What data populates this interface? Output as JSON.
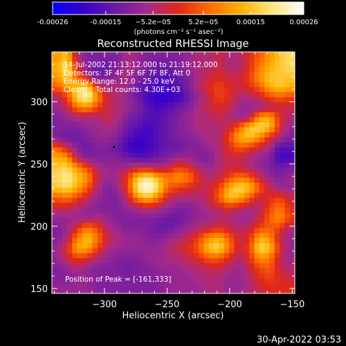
{
  "colorbar": {
    "tick_labels": [
      "-0.00026",
      "-0.00015",
      "−5.2e−05",
      "5.2e−05",
      "0.00015",
      "0.00026"
    ],
    "tick_values": [
      -0.00026,
      -0.00015,
      -5.2e-05,
      5.2e-05,
      0.00015,
      0.00026
    ],
    "range": [
      -0.00026,
      0.00026
    ],
    "units_label": "(photons cm⁻² s⁻¹ asec⁻²)"
  },
  "title": "Reconstructed RHESSI Image",
  "info_lines": [
    "14-Jul-2002 21:13:12.000 to 21:19:12.000",
    "Detectors: 3F 4F 5F 6F 7F 8F, Att 0",
    "Energy Range: 12.0 - 25.0 keV",
    "Clean     Total counts: 4.30E+03"
  ],
  "peak_label": "Position of Peak = [-161,333]",
  "footer_date": "30-Apr-2022 03:53",
  "chart_data": {
    "type": "heatmap",
    "title": "Reconstructed RHESSI Image",
    "xlabel": "Heliocentric X (arcsec)",
    "ylabel": "Heliocentric Y (arcsec)",
    "xlim": [
      -342,
      -148
    ],
    "ylim": [
      146,
      340
    ],
    "x_ticks": [
      -300,
      -250,
      -200,
      -150
    ],
    "y_ticks": [
      150,
      200,
      250,
      300
    ],
    "x_tick_labels": [
      "−300",
      "−250",
      "−200",
      "−150"
    ],
    "y_tick_labels": [
      "150",
      "200",
      "250",
      "300"
    ],
    "value_range": [
      -0.00026,
      0.00026
    ],
    "colormap": [
      "#0000ff",
      "#3a00c8",
      "#6a1aa6",
      "#a32a8a",
      "#e0281a",
      "#ff6a00",
      "#ffb000",
      "#ffe680",
      "#ffffff"
    ],
    "grid": {
      "nx": 24,
      "ny": 24,
      "z": [
        [
          0.7,
          0.8,
          0.4,
          0.3,
          0.3,
          0.3,
          0.3,
          0.4,
          0.35,
          0.3,
          0.3,
          0.3,
          0.3,
          0.35,
          0.4,
          0.4,
          0.45,
          0.4,
          0.4,
          0.5,
          0.6,
          0.7,
          0.8,
          0.85
        ],
        [
          0.75,
          0.9,
          0.5,
          0.3,
          0.25,
          0.25,
          0.3,
          0.4,
          0.35,
          0.3,
          0.25,
          0.25,
          0.3,
          0.35,
          0.4,
          0.4,
          0.45,
          0.4,
          0.4,
          0.5,
          0.65,
          0.75,
          0.8,
          0.85
        ],
        [
          0.7,
          0.85,
          0.6,
          0.4,
          0.25,
          0.3,
          0.35,
          0.4,
          0.3,
          0.25,
          0.2,
          0.2,
          0.25,
          0.3,
          0.4,
          0.45,
          0.5,
          0.45,
          0.45,
          0.55,
          0.7,
          0.8,
          0.8,
          0.8
        ],
        [
          0.6,
          0.7,
          0.8,
          0.9,
          0.5,
          0.4,
          0.4,
          0.35,
          0.25,
          0.2,
          0.15,
          0.15,
          0.2,
          0.3,
          0.4,
          0.5,
          0.55,
          0.5,
          0.45,
          0.5,
          0.6,
          0.75,
          0.8,
          0.75
        ],
        [
          0.4,
          0.55,
          0.85,
          0.95,
          0.7,
          0.45,
          0.4,
          0.35,
          0.25,
          0.15,
          0.1,
          0.1,
          0.15,
          0.25,
          0.35,
          0.45,
          0.55,
          0.5,
          0.4,
          0.4,
          0.45,
          0.55,
          0.6,
          0.55
        ],
        [
          0.35,
          0.45,
          0.65,
          0.7,
          0.55,
          0.45,
          0.4,
          0.35,
          0.3,
          0.2,
          0.15,
          0.2,
          0.25,
          0.3,
          0.4,
          0.45,
          0.5,
          0.45,
          0.35,
          0.35,
          0.35,
          0.4,
          0.45,
          0.45
        ],
        [
          0.3,
          0.35,
          0.4,
          0.4,
          0.4,
          0.45,
          0.4,
          0.3,
          0.25,
          0.2,
          0.2,
          0.25,
          0.3,
          0.35,
          0.4,
          0.4,
          0.45,
          0.4,
          0.35,
          0.4,
          0.7,
          0.75,
          0.5,
          0.4
        ],
        [
          0.3,
          0.3,
          0.3,
          0.35,
          0.35,
          0.4,
          0.35,
          0.25,
          0.2,
          0.15,
          0.2,
          0.25,
          0.3,
          0.35,
          0.4,
          0.4,
          0.4,
          0.45,
          0.6,
          0.8,
          0.85,
          0.8,
          0.5,
          0.35
        ],
        [
          0.3,
          0.25,
          0.25,
          0.3,
          0.35,
          0.35,
          0.3,
          0.2,
          0.15,
          0.15,
          0.2,
          0.25,
          0.3,
          0.3,
          0.35,
          0.4,
          0.4,
          0.55,
          0.75,
          0.8,
          0.7,
          0.5,
          0.4,
          0.3
        ],
        [
          0.6,
          0.45,
          0.3,
          0.25,
          0.3,
          0.3,
          0.25,
          0.15,
          0.1,
          0.15,
          0.2,
          0.25,
          0.25,
          0.3,
          0.3,
          0.35,
          0.4,
          0.5,
          0.6,
          0.55,
          0.45,
          0.4,
          0.2,
          0.2
        ],
        [
          0.75,
          0.7,
          0.4,
          0.3,
          0.3,
          0.3,
          0.3,
          0.25,
          0.2,
          0.2,
          0.25,
          0.3,
          0.35,
          0.35,
          0.3,
          0.3,
          0.4,
          0.45,
          0.45,
          0.4,
          0.35,
          0.3,
          0.15,
          0.15
        ],
        [
          0.8,
          0.85,
          0.7,
          0.55,
          0.4,
          0.35,
          0.35,
          0.4,
          0.45,
          0.45,
          0.4,
          0.45,
          0.55,
          0.5,
          0.4,
          0.35,
          0.4,
          0.45,
          0.45,
          0.4,
          0.35,
          0.3,
          0.25,
          0.3
        ],
        [
          0.85,
          0.9,
          0.8,
          0.7,
          0.45,
          0.35,
          0.4,
          0.55,
          0.8,
          0.9,
          0.75,
          0.65,
          0.7,
          0.65,
          0.5,
          0.4,
          0.45,
          0.55,
          0.65,
          0.6,
          0.45,
          0.35,
          0.3,
          0.35
        ],
        [
          0.8,
          0.85,
          0.75,
          0.6,
          0.4,
          0.3,
          0.35,
          0.55,
          0.9,
          1.0,
          0.85,
          0.6,
          0.55,
          0.5,
          0.45,
          0.45,
          0.55,
          0.75,
          0.85,
          0.8,
          0.6,
          0.45,
          0.35,
          0.35
        ],
        [
          0.6,
          0.65,
          0.55,
          0.45,
          0.35,
          0.3,
          0.3,
          0.45,
          0.7,
          0.8,
          0.65,
          0.45,
          0.4,
          0.4,
          0.4,
          0.45,
          0.6,
          0.8,
          0.75,
          0.6,
          0.45,
          0.5,
          0.55,
          0.45
        ],
        [
          0.45,
          0.45,
          0.4,
          0.35,
          0.3,
          0.3,
          0.3,
          0.35,
          0.4,
          0.45,
          0.4,
          0.35,
          0.3,
          0.3,
          0.35,
          0.4,
          0.45,
          0.5,
          0.45,
          0.4,
          0.4,
          0.55,
          0.65,
          0.5
        ],
        [
          0.35,
          0.35,
          0.35,
          0.35,
          0.4,
          0.35,
          0.3,
          0.3,
          0.3,
          0.3,
          0.3,
          0.25,
          0.25,
          0.3,
          0.35,
          0.35,
          0.4,
          0.4,
          0.35,
          0.35,
          0.45,
          0.6,
          0.7,
          0.55
        ],
        [
          0.3,
          0.35,
          0.5,
          0.65,
          0.55,
          0.4,
          0.35,
          0.3,
          0.3,
          0.3,
          0.25,
          0.25,
          0.3,
          0.35,
          0.4,
          0.45,
          0.5,
          0.45,
          0.4,
          0.45,
          0.55,
          0.6,
          0.55,
          0.4
        ],
        [
          0.3,
          0.4,
          0.65,
          0.8,
          0.65,
          0.45,
          0.4,
          0.35,
          0.35,
          0.3,
          0.3,
          0.35,
          0.4,
          0.45,
          0.55,
          0.7,
          0.75,
          0.6,
          0.45,
          0.5,
          0.75,
          0.7,
          0.45,
          0.35
        ],
        [
          0.35,
          0.5,
          0.75,
          0.75,
          0.55,
          0.4,
          0.35,
          0.35,
          0.35,
          0.35,
          0.35,
          0.4,
          0.45,
          0.5,
          0.6,
          0.8,
          0.85,
          0.65,
          0.45,
          0.55,
          0.85,
          0.8,
          0.5,
          0.35
        ],
        [
          0.35,
          0.45,
          0.55,
          0.5,
          0.4,
          0.35,
          0.3,
          0.3,
          0.3,
          0.35,
          0.35,
          0.4,
          0.4,
          0.45,
          0.5,
          0.6,
          0.6,
          0.5,
          0.4,
          0.5,
          0.7,
          0.65,
          0.45,
          0.35
        ],
        [
          0.3,
          0.35,
          0.4,
          0.35,
          0.3,
          0.3,
          0.3,
          0.25,
          0.3,
          0.3,
          0.35,
          0.35,
          0.35,
          0.4,
          0.4,
          0.45,
          0.45,
          0.4,
          0.35,
          0.45,
          0.55,
          0.6,
          0.45,
          0.4
        ],
        [
          0.3,
          0.3,
          0.35,
          0.35,
          0.3,
          0.3,
          0.3,
          0.3,
          0.3,
          0.3,
          0.3,
          0.35,
          0.35,
          0.35,
          0.4,
          0.4,
          0.4,
          0.35,
          0.35,
          0.4,
          0.5,
          0.55,
          0.5,
          0.45
        ],
        [
          0.35,
          0.35,
          0.35,
          0.35,
          0.3,
          0.3,
          0.3,
          0.3,
          0.3,
          0.3,
          0.3,
          0.35,
          0.35,
          0.35,
          0.35,
          0.4,
          0.4,
          0.35,
          0.35,
          0.4,
          0.45,
          0.5,
          0.5,
          0.5
        ]
      ]
    }
  }
}
